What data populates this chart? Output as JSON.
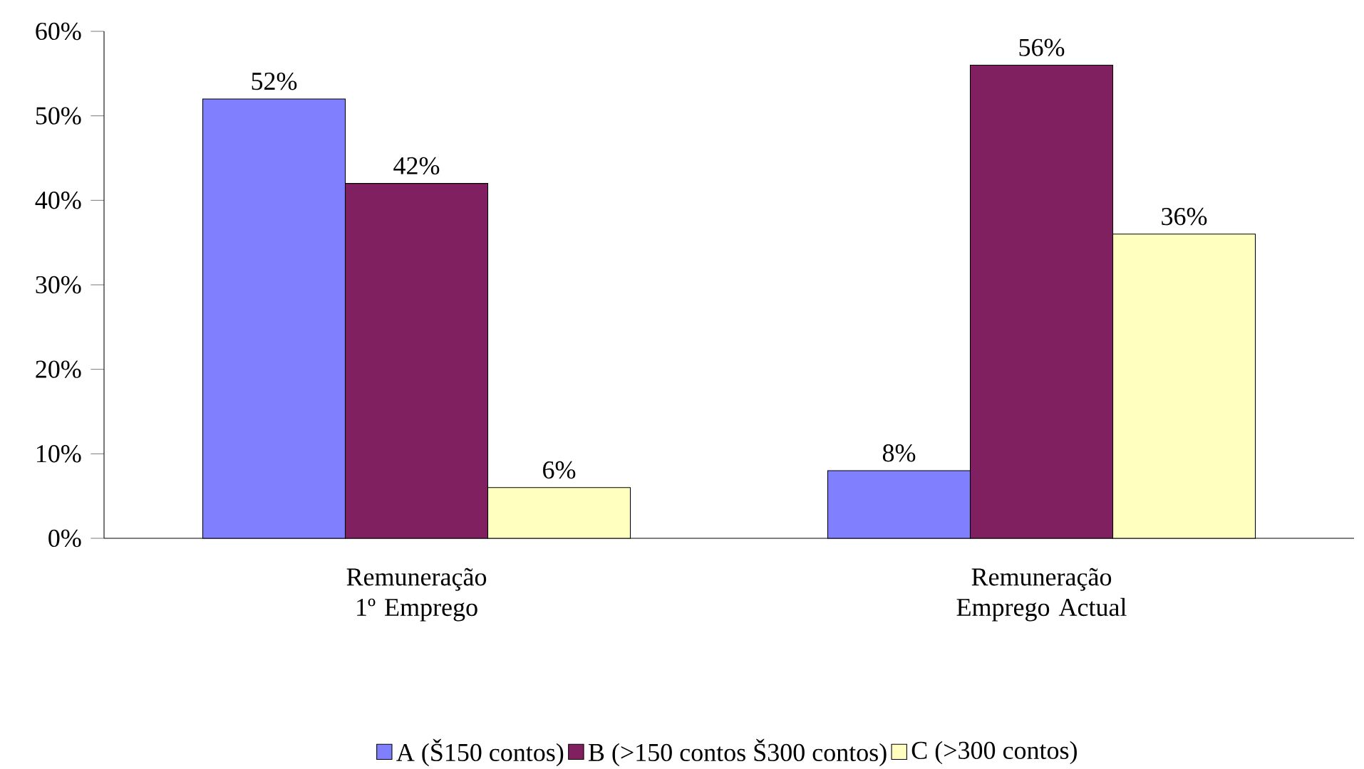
{
  "chart_data": {
    "type": "bar",
    "categories": [
      "Remuneração 1º Emprego",
      "Remuneração Emprego Actual"
    ],
    "series": [
      {
        "name": "A (Š150 contos)",
        "color": "#8080ff",
        "values": [
          52,
          8
        ],
        "value_labels": [
          "52%",
          "8%"
        ]
      },
      {
        "name": "B (>150 contos Š300 contos)",
        "color": "#802060",
        "values": [
          42,
          56
        ],
        "value_labels": [
          "42%",
          "56%"
        ]
      },
      {
        "name": "C (>300 contos)",
        "color": "#ffffc0",
        "values": [
          6,
          36
        ],
        "value_labels": [
          "6%",
          "36%"
        ]
      }
    ],
    "ylim": [
      0,
      60
    ],
    "yticks": [
      {
        "value": 0,
        "label": "0%"
      },
      {
        "value": 10,
        "label": "10%"
      },
      {
        "value": 20,
        "label": "20%"
      },
      {
        "value": 30,
        "label": "30%"
      },
      {
        "value": 40,
        "label": "40%"
      },
      {
        "value": 50,
        "label": "50%"
      },
      {
        "value": 60,
        "label": "60%"
      }
    ],
    "grid": false,
    "legend": "bottom"
  }
}
